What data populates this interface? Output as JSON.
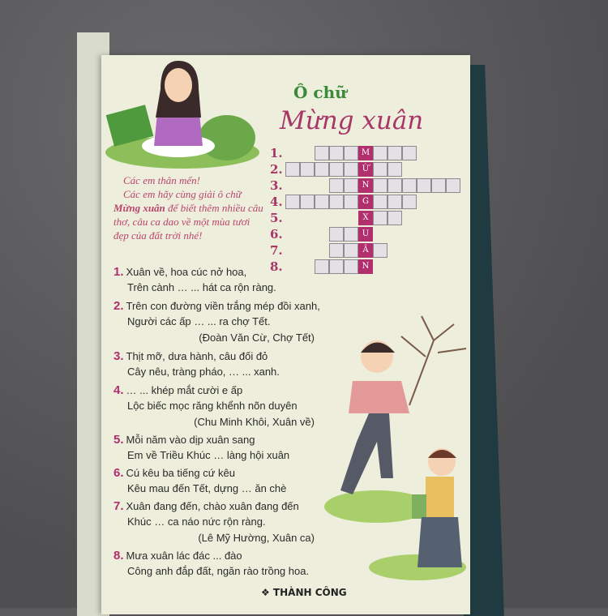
{
  "header": {
    "label": "Ô chữ",
    "title": "Mừng xuân"
  },
  "intro": {
    "line1": "Các em thân mến!",
    "pre": "Các em hãy cùng giải ô chữ ",
    "bold": "Mừng xuân",
    "post": " để biết thêm nhiều câu thơ, câu ca dao về một mùa tươi đẹp của đất trời nhé!"
  },
  "crossword": {
    "rows": [
      {
        "num": "1.",
        "left": 3,
        "right": 3,
        "key": "M"
      },
      {
        "num": "2.",
        "left": 5,
        "right": 2,
        "key": "Ừ"
      },
      {
        "num": "3.",
        "left": 2,
        "right": 6,
        "key": "N"
      },
      {
        "num": "4.",
        "left": 5,
        "right": 3,
        "key": "G"
      },
      {
        "num": "5.",
        "left": 0,
        "right": 2,
        "key": "X"
      },
      {
        "num": "6.",
        "left": 2,
        "right": 0,
        "key": "U"
      },
      {
        "num": "7.",
        "left": 2,
        "right": 1,
        "key": "Â"
      },
      {
        "num": "8.",
        "left": 3,
        "right": 0,
        "key": "N"
      }
    ]
  },
  "clues": [
    {
      "num": "1.",
      "l1": "Xuân về, hoa cúc nở hoa,",
      "l2": "Trên cành … ... hát ca rộn ràng."
    },
    {
      "num": "2.",
      "l1": "Trên con đường viền trắng mép đồi xanh,",
      "l2": "Người các ấp … ... ra chợ Tết.",
      "src": "(Đoàn Văn Cừ, Chợ Tết)"
    },
    {
      "num": "3.",
      "l1": "Thịt mỡ, dưa hành, câu đối đỏ",
      "l2": "Cây nêu, tràng pháo, … ... xanh."
    },
    {
      "num": "4.",
      "l1": "… ... khép mắt cười e ấp",
      "l2": "Lộc biếc mọc răng khểnh nõn duyên",
      "src": "(Chu Minh Khôi, Xuân về)"
    },
    {
      "num": "5.",
      "l1": "Mỗi năm vào dịp xuân sang",
      "l2": "Em về Triều Khúc … làng hội xuân"
    },
    {
      "num": "6.",
      "l1": "Cú kêu ba tiếng cứ kêu",
      "l2": "Kêu mau đến Tết, dựng … ăn chè"
    },
    {
      "num": "7.",
      "l1": "Xuân đang đến, chào xuân đang đến",
      "l2": "Khúc … ca náo nức rộn ràng.",
      "src": "(Lê Mỹ Hường, Xuân ca)"
    },
    {
      "num": "8.",
      "l1": "Mưa xuân lác đác ... đào",
      "l2": "Công anh đắp đất, ngăn rào trồng hoa."
    }
  ],
  "footer": {
    "brand": "❖ THÀNH CÔNG"
  },
  "colors": {
    "accent": "#b02f6c",
    "title_green": "#3b8a3a",
    "page": "#eeeedc"
  }
}
